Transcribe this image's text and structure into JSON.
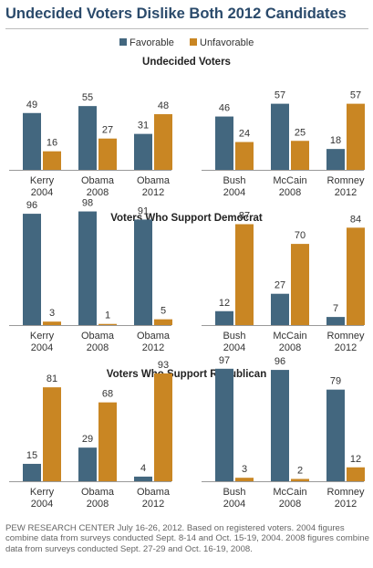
{
  "title": "Undecided Voters Dislike Both 2012 Candidates",
  "legend": [
    {
      "label": "Favorable",
      "color": "#43677f"
    },
    {
      "label": "Unfavorable",
      "color": "#c98623"
    }
  ],
  "chart_data": {
    "type": "bar",
    "title": "Undecided Voters Dislike Both 2012 Candidates",
    "legend_position": "top",
    "series_names": [
      "Favorable",
      "Unfavorable"
    ],
    "colors": {
      "Favorable": "#43677f",
      "Unfavorable": "#c98623"
    },
    "ylim": [
      0,
      100
    ],
    "grid": false,
    "sections": [
      {
        "heading": "Undecided Voters",
        "panels": [
          {
            "categories": [
              "Kerry 2004",
              "Obama 2008",
              "Obama 2012"
            ],
            "favorable": [
              49,
              55,
              31
            ],
            "unfavorable": [
              16,
              27,
              48
            ]
          },
          {
            "categories": [
              "Bush 2004",
              "McCain 2008",
              "Romney 2012"
            ],
            "favorable": [
              46,
              57,
              18
            ],
            "unfavorable": [
              24,
              25,
              57
            ]
          }
        ]
      },
      {
        "heading": "Voters Who Support Democrat",
        "panels": [
          {
            "categories": [
              "Kerry 2004",
              "Obama 2008",
              "Obama 2012"
            ],
            "favorable": [
              96,
              98,
              91
            ],
            "unfavorable": [
              3,
              1,
              5
            ]
          },
          {
            "categories": [
              "Bush 2004",
              "McCain 2008",
              "Romney 2012"
            ],
            "favorable": [
              12,
              27,
              7
            ],
            "unfavorable": [
              87,
              70,
              84
            ]
          }
        ]
      },
      {
        "heading": "Voters Who Support Republican",
        "panels": [
          {
            "categories": [
              "Kerry 2004",
              "Obama 2008",
              "Obama 2012"
            ],
            "favorable": [
              15,
              29,
              4
            ],
            "unfavorable": [
              81,
              68,
              93
            ]
          },
          {
            "categories": [
              "Bush 2004",
              "McCain 2008",
              "Romney 2012"
            ],
            "favorable": [
              97,
              96,
              79
            ],
            "unfavorable": [
              3,
              2,
              12
            ]
          }
        ]
      }
    ]
  },
  "note": "PEW RESEARCH CENTER July 16-26, 2012. Based on registered voters. 2004 figures combine data from surveys conducted Sept. 8-14 and Oct. 15-19, 2004. 2008 figures combine data from surveys conducted Sept. 27-29 and Oct. 16-19, 2008."
}
